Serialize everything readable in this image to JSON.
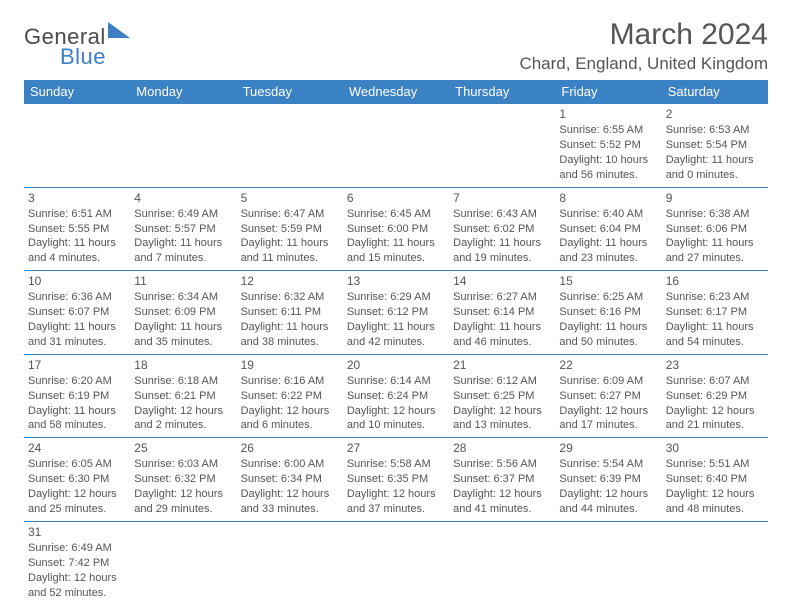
{
  "colors": {
    "header_bg": "#3b82c4",
    "header_text": "#ffffff",
    "body_text": "#555555",
    "row_divider": "#3b82c4",
    "logo_blue": "#3b7fc4",
    "page_bg": "#ffffff"
  },
  "typography": {
    "title_fontsize": 30,
    "location_fontsize": 17,
    "header_fontsize": 13,
    "cell_fontsize": 11,
    "daynum_fontsize": 12
  },
  "logo": {
    "text1": "General",
    "text2": "Blue"
  },
  "title": "March 2024",
  "location": "Chard, England, United Kingdom",
  "day_headers": [
    "Sunday",
    "Monday",
    "Tuesday",
    "Wednesday",
    "Thursday",
    "Friday",
    "Saturday"
  ],
  "weeks": [
    [
      null,
      null,
      null,
      null,
      null,
      {
        "n": "1",
        "sr": "Sunrise: 6:55 AM",
        "ss": "Sunset: 5:52 PM",
        "dl": "Daylight: 10 hours and 56 minutes."
      },
      {
        "n": "2",
        "sr": "Sunrise: 6:53 AM",
        "ss": "Sunset: 5:54 PM",
        "dl": "Daylight: 11 hours and 0 minutes."
      }
    ],
    [
      {
        "n": "3",
        "sr": "Sunrise: 6:51 AM",
        "ss": "Sunset: 5:55 PM",
        "dl": "Daylight: 11 hours and 4 minutes."
      },
      {
        "n": "4",
        "sr": "Sunrise: 6:49 AM",
        "ss": "Sunset: 5:57 PM",
        "dl": "Daylight: 11 hours and 7 minutes."
      },
      {
        "n": "5",
        "sr": "Sunrise: 6:47 AM",
        "ss": "Sunset: 5:59 PM",
        "dl": "Daylight: 11 hours and 11 minutes."
      },
      {
        "n": "6",
        "sr": "Sunrise: 6:45 AM",
        "ss": "Sunset: 6:00 PM",
        "dl": "Daylight: 11 hours and 15 minutes."
      },
      {
        "n": "7",
        "sr": "Sunrise: 6:43 AM",
        "ss": "Sunset: 6:02 PM",
        "dl": "Daylight: 11 hours and 19 minutes."
      },
      {
        "n": "8",
        "sr": "Sunrise: 6:40 AM",
        "ss": "Sunset: 6:04 PM",
        "dl": "Daylight: 11 hours and 23 minutes."
      },
      {
        "n": "9",
        "sr": "Sunrise: 6:38 AM",
        "ss": "Sunset: 6:06 PM",
        "dl": "Daylight: 11 hours and 27 minutes."
      }
    ],
    [
      {
        "n": "10",
        "sr": "Sunrise: 6:36 AM",
        "ss": "Sunset: 6:07 PM",
        "dl": "Daylight: 11 hours and 31 minutes."
      },
      {
        "n": "11",
        "sr": "Sunrise: 6:34 AM",
        "ss": "Sunset: 6:09 PM",
        "dl": "Daylight: 11 hours and 35 minutes."
      },
      {
        "n": "12",
        "sr": "Sunrise: 6:32 AM",
        "ss": "Sunset: 6:11 PM",
        "dl": "Daylight: 11 hours and 38 minutes."
      },
      {
        "n": "13",
        "sr": "Sunrise: 6:29 AM",
        "ss": "Sunset: 6:12 PM",
        "dl": "Daylight: 11 hours and 42 minutes."
      },
      {
        "n": "14",
        "sr": "Sunrise: 6:27 AM",
        "ss": "Sunset: 6:14 PM",
        "dl": "Daylight: 11 hours and 46 minutes."
      },
      {
        "n": "15",
        "sr": "Sunrise: 6:25 AM",
        "ss": "Sunset: 6:16 PM",
        "dl": "Daylight: 11 hours and 50 minutes."
      },
      {
        "n": "16",
        "sr": "Sunrise: 6:23 AM",
        "ss": "Sunset: 6:17 PM",
        "dl": "Daylight: 11 hours and 54 minutes."
      }
    ],
    [
      {
        "n": "17",
        "sr": "Sunrise: 6:20 AM",
        "ss": "Sunset: 6:19 PM",
        "dl": "Daylight: 11 hours and 58 minutes."
      },
      {
        "n": "18",
        "sr": "Sunrise: 6:18 AM",
        "ss": "Sunset: 6:21 PM",
        "dl": "Daylight: 12 hours and 2 minutes."
      },
      {
        "n": "19",
        "sr": "Sunrise: 6:16 AM",
        "ss": "Sunset: 6:22 PM",
        "dl": "Daylight: 12 hours and 6 minutes."
      },
      {
        "n": "20",
        "sr": "Sunrise: 6:14 AM",
        "ss": "Sunset: 6:24 PM",
        "dl": "Daylight: 12 hours and 10 minutes."
      },
      {
        "n": "21",
        "sr": "Sunrise: 6:12 AM",
        "ss": "Sunset: 6:25 PM",
        "dl": "Daylight: 12 hours and 13 minutes."
      },
      {
        "n": "22",
        "sr": "Sunrise: 6:09 AM",
        "ss": "Sunset: 6:27 PM",
        "dl": "Daylight: 12 hours and 17 minutes."
      },
      {
        "n": "23",
        "sr": "Sunrise: 6:07 AM",
        "ss": "Sunset: 6:29 PM",
        "dl": "Daylight: 12 hours and 21 minutes."
      }
    ],
    [
      {
        "n": "24",
        "sr": "Sunrise: 6:05 AM",
        "ss": "Sunset: 6:30 PM",
        "dl": "Daylight: 12 hours and 25 minutes."
      },
      {
        "n": "25",
        "sr": "Sunrise: 6:03 AM",
        "ss": "Sunset: 6:32 PM",
        "dl": "Daylight: 12 hours and 29 minutes."
      },
      {
        "n": "26",
        "sr": "Sunrise: 6:00 AM",
        "ss": "Sunset: 6:34 PM",
        "dl": "Daylight: 12 hours and 33 minutes."
      },
      {
        "n": "27",
        "sr": "Sunrise: 5:58 AM",
        "ss": "Sunset: 6:35 PM",
        "dl": "Daylight: 12 hours and 37 minutes."
      },
      {
        "n": "28",
        "sr": "Sunrise: 5:56 AM",
        "ss": "Sunset: 6:37 PM",
        "dl": "Daylight: 12 hours and 41 minutes."
      },
      {
        "n": "29",
        "sr": "Sunrise: 5:54 AM",
        "ss": "Sunset: 6:39 PM",
        "dl": "Daylight: 12 hours and 44 minutes."
      },
      {
        "n": "30",
        "sr": "Sunrise: 5:51 AM",
        "ss": "Sunset: 6:40 PM",
        "dl": "Daylight: 12 hours and 48 minutes."
      }
    ],
    [
      {
        "n": "31",
        "sr": "Sunrise: 6:49 AM",
        "ss": "Sunset: 7:42 PM",
        "dl": "Daylight: 12 hours and 52 minutes."
      },
      null,
      null,
      null,
      null,
      null,
      null
    ]
  ]
}
